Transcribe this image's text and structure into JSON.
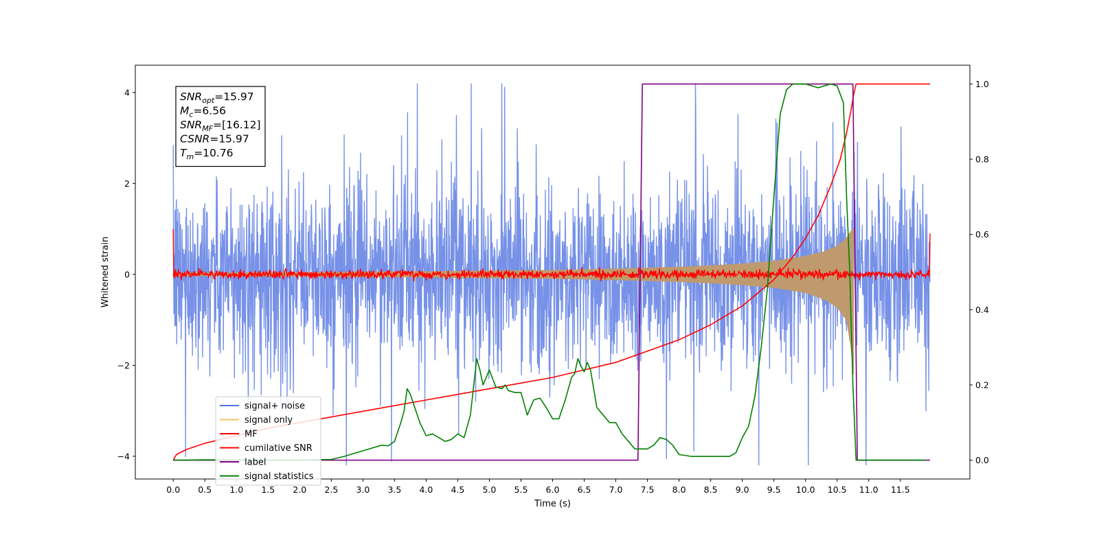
{
  "chart_data": {
    "type": "line",
    "title": "",
    "xlabel": "Time (s)",
    "ylabel": "Whitened strain",
    "xlim": [
      -0.6,
      12.6
    ],
    "ylim": [
      -4.5,
      4.6
    ],
    "y2lim": [
      -0.05,
      1.05
    ],
    "x_ticks": [
      0.0,
      0.5,
      1.0,
      1.5,
      2.0,
      2.5,
      3.0,
      3.5,
      4.0,
      4.5,
      5.0,
      5.5,
      6.0,
      6.5,
      7.0,
      7.5,
      8.0,
      8.5,
      9.0,
      9.5,
      10.0,
      10.5,
      11.0,
      11.5
    ],
    "x_tick_labels": [
      "0.0",
      "0.5",
      "1.0",
      "1.5",
      "2.0",
      "2.5",
      "3.0",
      "3.5",
      "4.0",
      "4.5",
      "5.0",
      "5.5",
      "6.0",
      "6.5",
      "7.0",
      "7.5",
      "8.0",
      "8.5",
      "9.0",
      "9.5",
      "10.0",
      "10.5",
      "11.0",
      "11.5"
    ],
    "y_ticks": [
      -4,
      -2,
      0,
      2,
      4
    ],
    "y_tick_labels": [
      "−4",
      "−2",
      "0",
      "2",
      "4"
    ],
    "y2_ticks": [
      0.0,
      0.2,
      0.4,
      0.6,
      0.8,
      1.0
    ],
    "y2_tick_labels": [
      "0.0",
      "0.2",
      "0.4",
      "0.6",
      "0.8",
      "1.0"
    ],
    "grid": false,
    "legend_position": "lower-left",
    "legend": [
      {
        "label": "signal+ noise",
        "color": "#4f72e0"
      },
      {
        "label": "signal only",
        "color": "#f5c465"
      },
      {
        "label": "MF",
        "color": "#ff0000"
      },
      {
        "label": "cumilative SNR",
        "color": "#ff0000"
      },
      {
        "label": "label",
        "color": "#800080"
      },
      {
        "label": "signal statistics",
        "color": "#008000"
      }
    ],
    "annotation": {
      "lines": [
        {
          "sym": "SNR",
          "sub": "opt",
          "value": "=15.97"
        },
        {
          "sym": "M",
          "sub": "c",
          "value": "=6.56"
        },
        {
          "sym": "SNR",
          "sub": "MF",
          "value": "=[16.12]"
        },
        {
          "sym": "CSNR",
          "sub": "",
          "value": "=15.97"
        },
        {
          "sym": "T",
          "sub": "m",
          "value": "=10.76"
        }
      ]
    },
    "series": [
      {
        "name": "signal+ noise",
        "axis": "left",
        "color": "#4f72e0",
        "kind": "noise",
        "x_range": [
          0.0,
          11.97
        ],
        "std": 0.95,
        "bias": 0.2,
        "peak_max": 4.2,
        "peak_min": -4.2
      },
      {
        "name": "signal only",
        "axis": "left",
        "color": "#f5c465",
        "kind": "chirp_envelope",
        "x": [
          0.0,
          2.0,
          4.0,
          6.0,
          7.0,
          8.0,
          8.5,
          9.0,
          9.5,
          10.0,
          10.3,
          10.5,
          10.65,
          10.72,
          10.76
        ],
        "upper": [
          0.03,
          0.04,
          0.06,
          0.09,
          0.12,
          0.16,
          0.19,
          0.23,
          0.29,
          0.4,
          0.5,
          0.62,
          0.8,
          0.95,
          1.0
        ],
        "lower": [
          -0.03,
          -0.04,
          -0.06,
          -0.09,
          -0.12,
          -0.16,
          -0.19,
          -0.23,
          -0.29,
          -0.4,
          -0.55,
          -0.72,
          -1.0,
          -1.6,
          -2.2
        ]
      },
      {
        "name": "MF",
        "axis": "left",
        "color": "#ff0000",
        "kind": "mf_noise",
        "x_range": [
          0.0,
          11.97
        ],
        "amp": 0.07,
        "edge_left": 1.0,
        "edge_right": 0.9
      },
      {
        "name": "cumilative SNR",
        "axis": "right",
        "color": "#ff0000",
        "kind": "line",
        "x": [
          0.0,
          0.05,
          0.2,
          0.5,
          1.0,
          1.5,
          2.0,
          2.5,
          3.0,
          3.5,
          4.0,
          4.5,
          5.0,
          5.5,
          6.0,
          6.5,
          7.0,
          7.5,
          8.0,
          8.5,
          9.0,
          9.5,
          9.8,
          10.0,
          10.2,
          10.4,
          10.55,
          10.65,
          10.72,
          10.76,
          10.8,
          11.97
        ],
        "y": [
          0.0,
          0.015,
          0.028,
          0.045,
          0.065,
          0.085,
          0.1,
          0.115,
          0.13,
          0.145,
          0.16,
          0.175,
          0.19,
          0.205,
          0.22,
          0.24,
          0.26,
          0.29,
          0.32,
          0.36,
          0.41,
          0.48,
          0.54,
          0.59,
          0.65,
          0.73,
          0.8,
          0.87,
          0.93,
          0.97,
          1.0,
          1.0
        ]
      },
      {
        "name": "label",
        "axis": "right",
        "color": "#800080",
        "kind": "line",
        "x": [
          0.0,
          7.35,
          7.42,
          10.75,
          10.82,
          11.97
        ],
        "y": [
          0.0,
          0.0,
          1.0,
          1.0,
          0.0,
          0.0
        ]
      },
      {
        "name": "signal statistics",
        "axis": "right",
        "color": "#008000",
        "kind": "line",
        "x": [
          0.0,
          0.5,
          1.0,
          1.5,
          2.0,
          2.5,
          2.7,
          2.9,
          3.0,
          3.1,
          3.2,
          3.3,
          3.4,
          3.5,
          3.6,
          3.65,
          3.7,
          3.75,
          3.8,
          3.9,
          4.0,
          4.1,
          4.2,
          4.3,
          4.4,
          4.5,
          4.6,
          4.7,
          4.8,
          4.85,
          4.9,
          5.0,
          5.1,
          5.2,
          5.25,
          5.3,
          5.4,
          5.5,
          5.6,
          5.65,
          5.7,
          5.8,
          5.9,
          6.0,
          6.1,
          6.2,
          6.3,
          6.35,
          6.4,
          6.45,
          6.5,
          6.55,
          6.6,
          6.7,
          6.8,
          6.9,
          7.0,
          7.1,
          7.2,
          7.3,
          7.4,
          7.5,
          7.6,
          7.7,
          7.8,
          7.9,
          8.0,
          8.2,
          8.4,
          8.6,
          8.8,
          8.9,
          9.0,
          9.1,
          9.2,
          9.3,
          9.4,
          9.5,
          9.6,
          9.7,
          9.8,
          10.0,
          10.2,
          10.4,
          10.5,
          10.6,
          10.65,
          10.7,
          10.75,
          10.8,
          10.85,
          10.9,
          11.5,
          11.9
        ],
        "y": [
          0.0,
          0.001,
          0.001,
          0.0,
          0.0,
          0.002,
          0.01,
          0.02,
          0.025,
          0.03,
          0.035,
          0.04,
          0.038,
          0.05,
          0.1,
          0.13,
          0.19,
          0.175,
          0.15,
          0.1,
          0.065,
          0.07,
          0.06,
          0.05,
          0.055,
          0.07,
          0.06,
          0.12,
          0.27,
          0.24,
          0.2,
          0.24,
          0.195,
          0.19,
          0.2,
          0.185,
          0.18,
          0.18,
          0.12,
          0.14,
          0.16,
          0.165,
          0.14,
          0.11,
          0.11,
          0.16,
          0.22,
          0.23,
          0.27,
          0.25,
          0.235,
          0.26,
          0.24,
          0.14,
          0.12,
          0.1,
          0.1,
          0.07,
          0.05,
          0.03,
          0.03,
          0.03,
          0.04,
          0.06,
          0.055,
          0.04,
          0.015,
          0.01,
          0.01,
          0.01,
          0.01,
          0.02,
          0.06,
          0.09,
          0.17,
          0.3,
          0.46,
          0.7,
          0.92,
          0.985,
          1.0,
          1.0,
          0.99,
          1.0,
          0.995,
          0.95,
          0.7,
          0.5,
          0.2,
          0.0,
          0.0,
          0.0,
          0.0,
          0.0
        ]
      }
    ]
  }
}
